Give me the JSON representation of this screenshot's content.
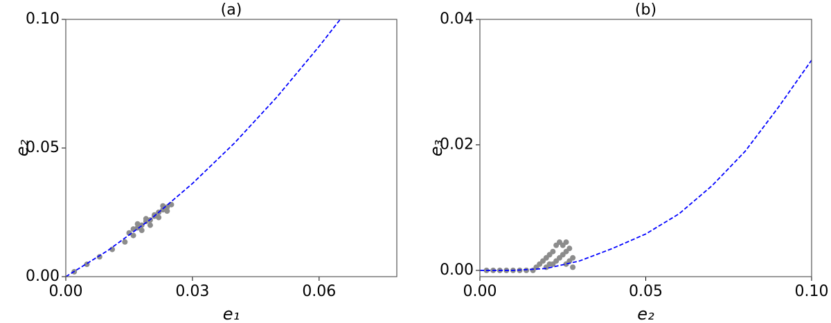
{
  "chart_data": [
    {
      "type": "scatter",
      "title": "(a)",
      "xlabel": "e₁",
      "ylabel": "e₂",
      "xlim": [
        0,
        0.0784
      ],
      "ylim": [
        0,
        0.1
      ],
      "xticks": [
        {
          "value": 0,
          "label": "0.00"
        },
        {
          "value": 0.03,
          "label": "0.03"
        },
        {
          "value": 0.06,
          "label": "0.06"
        }
      ],
      "yticks": [
        {
          "value": 0,
          "label": "0.00"
        },
        {
          "value": 0.05,
          "label": "0.05"
        },
        {
          "value": 0.1,
          "label": "0.10"
        }
      ],
      "series": [
        {
          "kind": "points",
          "color": "#8c8c8c",
          "x": [
            0.002,
            0.005,
            0.008,
            0.011,
            0.014,
            0.015,
            0.016,
            0.017,
            0.018,
            0.019,
            0.02,
            0.021,
            0.022,
            0.023,
            0.024,
            0.025,
            0.016,
            0.018,
            0.02,
            0.022,
            0.024,
            0.017,
            0.019,
            0.021,
            0.023
          ],
          "values": [
            0.0019,
            0.0048,
            0.0077,
            0.0106,
            0.0135,
            0.017,
            0.0185,
            0.019,
            0.02,
            0.0215,
            0.022,
            0.024,
            0.025,
            0.026,
            0.027,
            0.028,
            0.016,
            0.018,
            0.02,
            0.023,
            0.0255,
            0.0205,
            0.0225,
            0.0235,
            0.0275
          ]
        },
        {
          "kind": "dashed-line",
          "color": "#0000ff",
          "x": [
            0,
            0.01,
            0.02,
            0.03,
            0.04,
            0.05,
            0.06,
            0.065
          ],
          "values": [
            0,
            0.0102,
            0.0222,
            0.0362,
            0.052,
            0.0698,
            0.0895,
            0.1
          ]
        }
      ]
    },
    {
      "type": "scatter",
      "title": "(b)",
      "xlabel": "e₂",
      "ylabel": "e₃",
      "xlim": [
        0,
        0.1
      ],
      "ylim": [
        -0.001,
        0.04
      ],
      "xticks": [
        {
          "value": 0,
          "label": "0.00"
        },
        {
          "value": 0.05,
          "label": "0.05"
        },
        {
          "value": 0.1,
          "label": "0.10"
        }
      ],
      "yticks": [
        {
          "value": 0,
          "label": "0.00"
        },
        {
          "value": 0.02,
          "label": "0.02"
        },
        {
          "value": 0.04,
          "label": "0.04"
        }
      ],
      "series": [
        {
          "kind": "points",
          "color": "#8c8c8c",
          "x": [
            0.002,
            0.004,
            0.006,
            0.008,
            0.01,
            0.012,
            0.014,
            0.016,
            0.017,
            0.018,
            0.019,
            0.02,
            0.021,
            0.022,
            0.023,
            0.024,
            0.025,
            0.026,
            0.027,
            0.028,
            0.022,
            0.024,
            0.026,
            0.025,
            0.023,
            0.027,
            0.02,
            0.028,
            0.021,
            0.026
          ],
          "values": [
            0,
            0,
            0,
            0,
            0,
            0,
            0,
            0,
            0.0005,
            0.001,
            0.0015,
            0.002,
            0.0025,
            0.003,
            0.004,
            0.0045,
            0.004,
            0.0045,
            0.0035,
            0.002,
            0.001,
            0.002,
            0.001,
            0.0025,
            0.0015,
            0.0015,
            0.0005,
            0.0005,
            0.001,
            0.003
          ]
        },
        {
          "kind": "dashed-line",
          "color": "#0000ff",
          "x": [
            0,
            0.01,
            0.02,
            0.03,
            0.04,
            0.05,
            0.06,
            0.07,
            0.08,
            0.09,
            0.1
          ],
          "values": [
            0,
            0,
            0.0003,
            0.0015,
            0.0035,
            0.0058,
            0.009,
            0.0135,
            0.019,
            0.026,
            0.0335
          ]
        }
      ]
    }
  ]
}
